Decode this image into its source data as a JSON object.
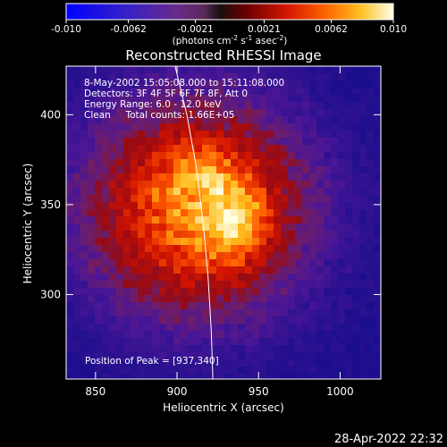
{
  "chart_data": {
    "type": "heatmap",
    "title": "Reconstructed RHESSI Image",
    "xlabel": "Heliocentric X (arcsec)",
    "ylabel": "Heliocentric Y (arcsec)",
    "xlim": [
      832,
      1025
    ],
    "ylim": [
      253,
      427
    ],
    "x_ticks": [
      850,
      900,
      950,
      1000
    ],
    "y_ticks": [
      300,
      350,
      400
    ],
    "colorbar": {
      "range": [
        -0.01,
        0.01
      ],
      "ticks": [
        "-0.010",
        "-0.0062",
        "-0.0021",
        "0.0021",
        "0.0062",
        "0.010"
      ],
      "tick_values": [
        -0.01,
        -0.0062,
        -0.0021,
        0.0021,
        0.0062,
        0.01
      ],
      "unit_prefix": "(photons cm",
      "unit_sup1": "-2",
      "unit_mid1": " s",
      "unit_sup2": "-1",
      "unit_mid2": " asec",
      "unit_sup3": "-2",
      "unit_suffix": ")"
    },
    "peak": [
      937,
      340
    ],
    "annotations": [
      "8-May-2002 15:05:08.000 to 15:11:08.000",
      "Detectors: 3F 4F 5F 6F 7F 8F, Att 0",
      "Energy Range: 6.0 - 12.0 keV",
      "Clean     Total counts: 1.66E+05"
    ],
    "peak_label": "Position of Peak = [937,340]",
    "limb_curve": [
      [
        898,
        430
      ],
      [
        906,
        400
      ],
      [
        912,
        370
      ],
      [
        916,
        340
      ],
      [
        919,
        310
      ],
      [
        921,
        280
      ],
      [
        922,
        253
      ]
    ]
  },
  "footer": {
    "timestamp": "28-Apr-2022 22:32"
  },
  "colors": {
    "background": "#000000",
    "low": "#1a0e8c",
    "mid": "#d71a00",
    "high": "#ffffe0"
  }
}
